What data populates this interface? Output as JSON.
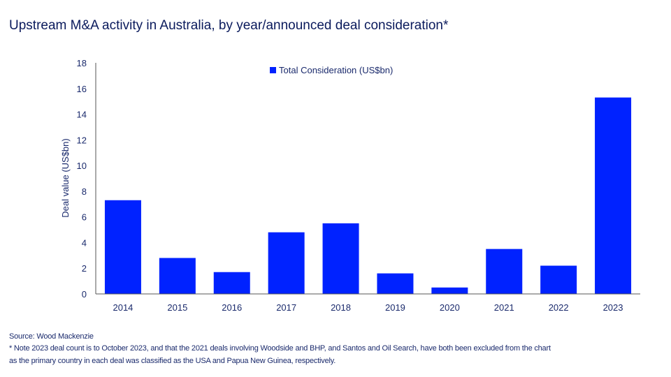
{
  "chart_data": {
    "type": "bar",
    "title": "Upstream M&A activity in Australia, by year/announced  deal consideration*",
    "categories": [
      "2014",
      "2015",
      "2016",
      "2017",
      "2018",
      "2019",
      "2020",
      "2021",
      "2022",
      "2023"
    ],
    "series": [
      {
        "name": "Total Consideration (US$bn)",
        "values": [
          7.3,
          2.8,
          1.7,
          4.8,
          5.5,
          1.6,
          0.5,
          3.5,
          2.2,
          15.3
        ],
        "color": "#0022ff"
      }
    ],
    "xlabel": "",
    "ylabel": "Deal value (US$bn)",
    "ylim": [
      0,
      18
    ],
    "yticks": [
      0,
      2,
      4,
      6,
      8,
      10,
      12,
      14,
      16,
      18
    ],
    "grid": false,
    "legend": "top-center"
  },
  "footer": {
    "source": "Source: Wood Mackenzie",
    "note_line1": "* Note 2023 deal count is to October 2023, and that the 2021 deals involving Woodside and BHP, and Santos and Oil Search, have both been excluded from the chart",
    "note_line2": "as the primary country in each deal was classified as the USA and Papua New Guinea, respectively."
  }
}
